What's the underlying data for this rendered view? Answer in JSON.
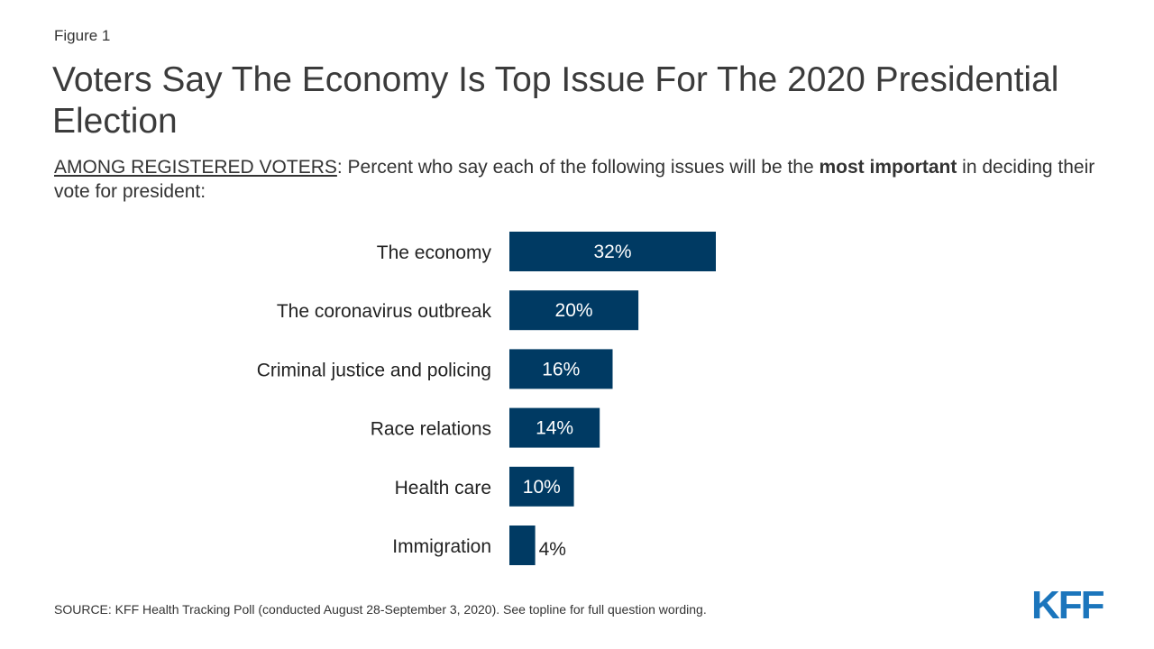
{
  "figure_label": "Figure 1",
  "title": "Voters Say The Economy Is Top Issue For The 2020 Presidential Election",
  "subtitle": {
    "lead": "AMONG REGISTERED VOTERS",
    "text1": ": Percent who say each of the following issues will be the ",
    "bold": "most important",
    "text2": " in deciding their vote for president:"
  },
  "source": "SOURCE: KFF Health Tracking Poll (conducted August 28-September 3, 2020). See topline for full question wording.",
  "logo": "KFF",
  "colors": {
    "bar": "#003a63",
    "label_inside": "#ffffff",
    "label_outside": "#222222",
    "logo": "#1b75bc"
  },
  "chart_data": {
    "type": "bar",
    "orientation": "horizontal",
    "categories": [
      "The economy",
      "The coronavirus outbreak",
      "Criminal justice and policing",
      "Race relations",
      "Health care",
      "Immigration"
    ],
    "values": [
      32,
      20,
      16,
      14,
      10,
      4
    ],
    "data_labels": [
      "32%",
      "20%",
      "16%",
      "14%",
      "10%",
      "4%"
    ],
    "xlim": [
      0,
      32
    ],
    "grid": false
  }
}
